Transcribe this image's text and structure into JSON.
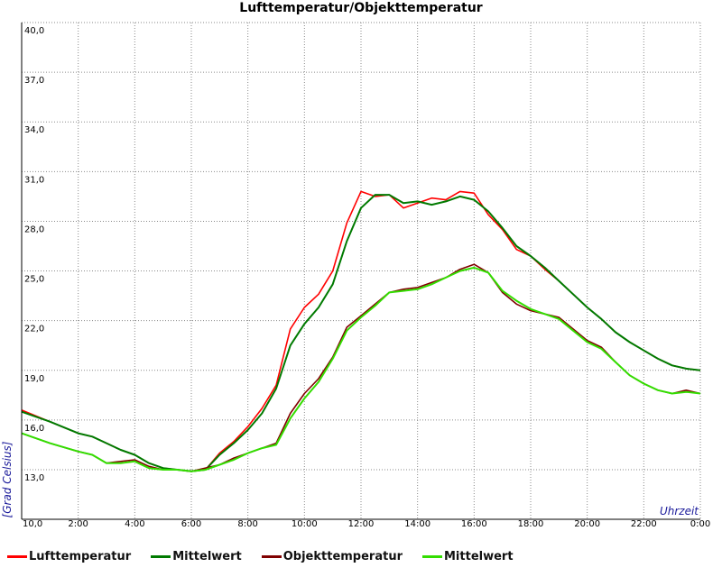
{
  "chart_data": {
    "type": "line",
    "title": "Lufttemperatur/Objekttemperatur",
    "ylabel": "[Grad Celsius]",
    "xlabel": "Uhrzeit",
    "ylim": [
      13.0,
      40.0
    ],
    "y_ticks": [
      "13,0",
      "16,0",
      "19,0",
      "22,0",
      "25,0",
      "28,0",
      "31,0",
      "34,0",
      "37,0",
      "40,0"
    ],
    "x_ticks": [
      "10,0",
      "2:00",
      "4:00",
      "6:00",
      "8:00",
      "10:00",
      "12:00",
      "14:00",
      "16:00",
      "18:00",
      "20:00",
      "22:00",
      "0:00"
    ],
    "xlim_hours": [
      0,
      24
    ],
    "grid": true,
    "legend_position": "bottom",
    "series": [
      {
        "name": "Lufttemperatur",
        "color": "#ff0000",
        "x": [
          0,
          1,
          2,
          2.5,
          3,
          3.5,
          4,
          4.5,
          5,
          5.5,
          6,
          6.5,
          7,
          7.5,
          8,
          8.5,
          9,
          9.5,
          10,
          10.5,
          11,
          11.5,
          12,
          12.5,
          13,
          13.5,
          14,
          14.5,
          15,
          15.5,
          16,
          16.5,
          17,
          17.5,
          18,
          18.5,
          19,
          19.5,
          20,
          20.5,
          21,
          21.5,
          22,
          22.5,
          23,
          23.5,
          24
        ],
        "values": [
          16.6,
          15.9,
          15.2,
          15.0,
          14.6,
          14.2,
          13.9,
          13.4,
          13.1,
          13.0,
          12.9,
          13.0,
          14.0,
          14.7,
          15.6,
          16.7,
          18.1,
          21.5,
          22.8,
          23.6,
          25.0,
          27.9,
          29.8,
          29.5,
          29.6,
          28.8,
          29.1,
          29.4,
          29.3,
          29.8,
          29.7,
          28.4,
          27.5,
          26.3,
          25.9,
          25.1,
          24.4,
          23.6,
          22.8,
          22.1,
          21.3,
          20.7,
          20.2,
          19.7,
          19.3,
          19.1,
          19.0
        ]
      },
      {
        "name": "Mittelwert",
        "color": "#007a00",
        "x": [
          0,
          1,
          2,
          2.5,
          3,
          3.5,
          4,
          4.5,
          5,
          5.5,
          6,
          6.5,
          7,
          7.5,
          8,
          8.5,
          9,
          9.5,
          10,
          10.5,
          11,
          11.5,
          12,
          12.5,
          13,
          13.5,
          14,
          14.5,
          15,
          15.5,
          16,
          16.5,
          17,
          17.5,
          18,
          18.5,
          19,
          19.5,
          20,
          20.5,
          21,
          21.5,
          22,
          22.5,
          23,
          23.5,
          24
        ],
        "values": [
          16.5,
          15.9,
          15.2,
          15.0,
          14.6,
          14.2,
          13.9,
          13.4,
          13.1,
          13.0,
          12.9,
          13.0,
          13.9,
          14.6,
          15.4,
          16.4,
          17.9,
          20.5,
          21.8,
          22.8,
          24.2,
          26.8,
          28.8,
          29.6,
          29.6,
          29.1,
          29.2,
          29.0,
          29.2,
          29.5,
          29.3,
          28.6,
          27.6,
          26.5,
          25.9,
          25.2,
          24.4,
          23.6,
          22.8,
          22.1,
          21.3,
          20.7,
          20.2,
          19.7,
          19.3,
          19.1,
          19.0
        ]
      },
      {
        "name": "Objekttemperatur",
        "color": "#800000",
        "x": [
          0,
          1,
          2,
          2.5,
          3,
          3.5,
          4,
          4.5,
          5,
          5.5,
          6,
          6.5,
          7,
          7.5,
          8,
          8.5,
          9,
          9.5,
          10,
          10.5,
          11,
          11.5,
          12,
          12.5,
          13,
          13.5,
          14,
          14.5,
          15,
          15.5,
          16,
          16.5,
          17,
          17.5,
          18,
          18.5,
          19,
          19.5,
          20,
          20.5,
          21,
          21.5,
          22,
          22.5,
          23,
          23.5,
          24
        ],
        "values": [
          15.2,
          14.6,
          14.1,
          13.9,
          13.4,
          13.5,
          13.6,
          13.2,
          13.0,
          13.0,
          12.9,
          13.1,
          13.3,
          13.7,
          14.0,
          14.3,
          14.6,
          16.4,
          17.6,
          18.5,
          19.8,
          21.6,
          22.3,
          23.0,
          23.7,
          23.9,
          24.0,
          24.3,
          24.6,
          25.1,
          25.4,
          24.9,
          23.7,
          23.0,
          22.6,
          22.4,
          22.2,
          21.5,
          20.8,
          20.4,
          19.5,
          18.7,
          18.2,
          17.8,
          17.6,
          17.8,
          17.6
        ]
      },
      {
        "name": "Mittelwert",
        "color": "#33dd00",
        "x": [
          0,
          1,
          2,
          2.5,
          3,
          3.5,
          4,
          4.5,
          5,
          5.5,
          6,
          6.5,
          7,
          7.5,
          8,
          8.5,
          9,
          9.5,
          10,
          10.5,
          11,
          11.5,
          12,
          12.5,
          13,
          13.5,
          14,
          14.5,
          15,
          15.5,
          16,
          16.5,
          17,
          17.5,
          18,
          18.5,
          19,
          19.5,
          20,
          20.5,
          21,
          21.5,
          22,
          22.5,
          23,
          23.5,
          24
        ],
        "values": [
          15.2,
          14.6,
          14.1,
          13.9,
          13.4,
          13.4,
          13.5,
          13.1,
          13.0,
          13.0,
          12.9,
          13.0,
          13.3,
          13.6,
          14.0,
          14.3,
          14.5,
          16.1,
          17.3,
          18.3,
          19.7,
          21.4,
          22.2,
          22.9,
          23.7,
          23.8,
          23.9,
          24.2,
          24.6,
          25.0,
          25.2,
          24.9,
          23.8,
          23.2,
          22.7,
          22.4,
          22.1,
          21.4,
          20.7,
          20.3,
          19.5,
          18.7,
          18.2,
          17.8,
          17.6,
          17.7,
          17.6
        ]
      }
    ]
  }
}
